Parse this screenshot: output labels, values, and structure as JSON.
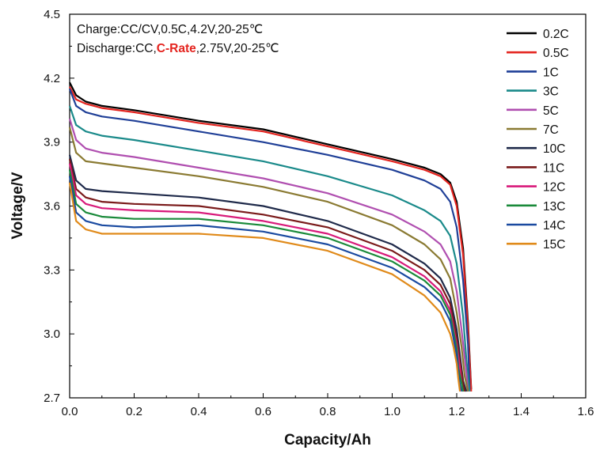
{
  "chart_data": {
    "type": "line",
    "xlabel": "Capacity/Ah",
    "ylabel": "Voltage/V",
    "xlim": [
      0.0,
      1.6
    ],
    "ylim": [
      2.7,
      4.5
    ],
    "xticks": [
      "0.0",
      "0.2",
      "0.4",
      "0.6",
      "0.8",
      "1.0",
      "1.2",
      "1.4",
      "1.6"
    ],
    "yticks": [
      "2.7",
      "3.0",
      "3.3",
      "3.6",
      "3.9",
      "4.2",
      "4.5"
    ],
    "grid": false,
    "legend_position": "top-right",
    "annotations": {
      "charge": "Charge:CC/CV,0.5C,4.2V,20-25℃",
      "discharge_prefix": "Discharge:CC,",
      "discharge_highlight": "C-Rate",
      "discharge_suffix": ",2.75V,20-25℃"
    },
    "series": [
      {
        "name": "0.2C",
        "color": "#000000",
        "x": [
          0.0,
          0.02,
          0.05,
          0.1,
          0.2,
          0.4,
          0.6,
          0.8,
          1.0,
          1.1,
          1.15,
          1.18,
          1.2,
          1.22,
          1.235,
          1.245
        ],
        "y": [
          4.18,
          4.12,
          4.09,
          4.07,
          4.05,
          4.0,
          3.96,
          3.89,
          3.82,
          3.78,
          3.75,
          3.71,
          3.62,
          3.4,
          3.05,
          2.74
        ]
      },
      {
        "name": "0.5C",
        "color": "#e4241f",
        "x": [
          0.0,
          0.02,
          0.05,
          0.1,
          0.2,
          0.4,
          0.6,
          0.8,
          1.0,
          1.1,
          1.15,
          1.18,
          1.2,
          1.22,
          1.235,
          1.245
        ],
        "y": [
          4.16,
          4.1,
          4.08,
          4.06,
          4.04,
          3.99,
          3.95,
          3.88,
          3.81,
          3.77,
          3.74,
          3.7,
          3.6,
          3.37,
          3.02,
          2.73
        ]
      },
      {
        "name": "1C",
        "color": "#1f3f97",
        "x": [
          0.0,
          0.02,
          0.05,
          0.1,
          0.2,
          0.4,
          0.6,
          0.8,
          1.0,
          1.1,
          1.15,
          1.18,
          1.2,
          1.22,
          1.235,
          1.24
        ],
        "y": [
          4.15,
          4.07,
          4.04,
          4.02,
          4.0,
          3.95,
          3.9,
          3.84,
          3.77,
          3.72,
          3.68,
          3.62,
          3.5,
          3.25,
          2.95,
          2.74
        ]
      },
      {
        "name": "3C",
        "color": "#1a8a8a",
        "x": [
          0.0,
          0.02,
          0.05,
          0.1,
          0.2,
          0.4,
          0.6,
          0.8,
          1.0,
          1.1,
          1.15,
          1.18,
          1.2,
          1.22,
          1.23,
          1.24
        ],
        "y": [
          4.07,
          3.98,
          3.95,
          3.93,
          3.91,
          3.86,
          3.81,
          3.74,
          3.65,
          3.58,
          3.53,
          3.46,
          3.33,
          3.08,
          2.88,
          2.73
        ]
      },
      {
        "name": "5C",
        "color": "#b04fb0",
        "x": [
          0.0,
          0.02,
          0.05,
          0.1,
          0.2,
          0.4,
          0.6,
          0.8,
          1.0,
          1.1,
          1.15,
          1.18,
          1.2,
          1.215,
          1.23,
          1.235
        ],
        "y": [
          4.01,
          3.91,
          3.87,
          3.85,
          3.83,
          3.78,
          3.73,
          3.66,
          3.56,
          3.48,
          3.42,
          3.34,
          3.2,
          3.02,
          2.82,
          2.73
        ]
      },
      {
        "name": "7C",
        "color": "#8a7a32",
        "x": [
          0.0,
          0.02,
          0.05,
          0.1,
          0.2,
          0.4,
          0.6,
          0.8,
          1.0,
          1.1,
          1.15,
          1.18,
          1.2,
          1.215,
          1.225,
          1.235
        ],
        "y": [
          3.97,
          3.85,
          3.81,
          3.8,
          3.78,
          3.74,
          3.69,
          3.62,
          3.51,
          3.42,
          3.35,
          3.26,
          3.1,
          2.94,
          2.8,
          2.73
        ]
      },
      {
        "name": "10C",
        "color": "#1f2a4a",
        "x": [
          0.0,
          0.02,
          0.05,
          0.1,
          0.2,
          0.4,
          0.6,
          0.8,
          1.0,
          1.1,
          1.15,
          1.18,
          1.2,
          1.21,
          1.22,
          1.23
        ],
        "y": [
          3.84,
          3.72,
          3.68,
          3.67,
          3.66,
          3.64,
          3.6,
          3.53,
          3.42,
          3.33,
          3.26,
          3.17,
          3.02,
          2.9,
          2.78,
          2.73
        ]
      },
      {
        "name": "11C",
        "color": "#7a1a1a",
        "x": [
          0.0,
          0.02,
          0.05,
          0.1,
          0.2,
          0.4,
          0.6,
          0.8,
          1.0,
          1.1,
          1.15,
          1.18,
          1.2,
          1.21,
          1.22,
          1.225
        ],
        "y": [
          3.82,
          3.68,
          3.64,
          3.62,
          3.61,
          3.6,
          3.56,
          3.5,
          3.39,
          3.3,
          3.23,
          3.14,
          2.98,
          2.87,
          2.77,
          2.73
        ]
      },
      {
        "name": "12C",
        "color": "#d81a7a",
        "x": [
          0.0,
          0.02,
          0.05,
          0.1,
          0.2,
          0.4,
          0.6,
          0.8,
          1.0,
          1.1,
          1.15,
          1.18,
          1.2,
          1.21,
          1.215,
          1.22
        ],
        "y": [
          3.8,
          3.65,
          3.61,
          3.59,
          3.58,
          3.57,
          3.53,
          3.47,
          3.36,
          3.27,
          3.2,
          3.11,
          2.95,
          2.84,
          2.77,
          2.73
        ]
      },
      {
        "name": "13C",
        "color": "#1a8a3a",
        "x": [
          0.0,
          0.02,
          0.05,
          0.1,
          0.2,
          0.4,
          0.6,
          0.8,
          1.0,
          1.1,
          1.15,
          1.18,
          1.2,
          1.205,
          1.215,
          1.22
        ],
        "y": [
          3.77,
          3.61,
          3.57,
          3.55,
          3.54,
          3.54,
          3.51,
          3.45,
          3.34,
          3.25,
          3.18,
          3.09,
          2.93,
          2.84,
          2.77,
          2.73
        ]
      },
      {
        "name": "14C",
        "color": "#1a4aa0",
        "x": [
          0.0,
          0.02,
          0.05,
          0.1,
          0.2,
          0.4,
          0.6,
          0.8,
          1.0,
          1.1,
          1.15,
          1.18,
          1.2,
          1.205,
          1.21,
          1.215
        ],
        "y": [
          3.74,
          3.57,
          3.53,
          3.51,
          3.5,
          3.51,
          3.48,
          3.42,
          3.31,
          3.22,
          3.15,
          3.06,
          2.9,
          2.82,
          2.76,
          2.73
        ]
      },
      {
        "name": "15C",
        "color": "#e08a1a",
        "x": [
          0.0,
          0.02,
          0.05,
          0.1,
          0.2,
          0.4,
          0.6,
          0.8,
          1.0,
          1.1,
          1.15,
          1.18,
          1.19,
          1.2,
          1.205,
          1.21
        ],
        "y": [
          3.71,
          3.53,
          3.49,
          3.47,
          3.47,
          3.47,
          3.45,
          3.39,
          3.28,
          3.18,
          3.1,
          3.0,
          2.94,
          2.86,
          2.79,
          2.73
        ]
      }
    ]
  }
}
